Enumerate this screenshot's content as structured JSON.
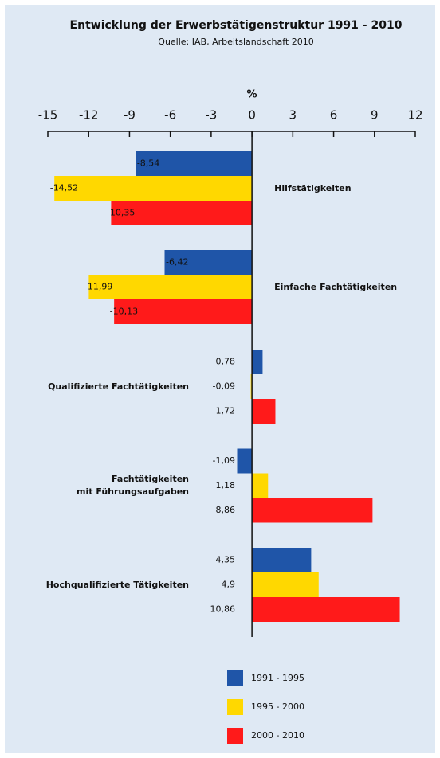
{
  "chart_data": {
    "type": "hbar",
    "title": "Entwicklung der Erwerbstätigenstruktur 1991 - 2010",
    "subtitle": "Quelle: IAB, Arbeitslandschaft 2010",
    "x_label": "%",
    "categories": [
      "Hilfstätigkeiten",
      "Einfache Fachtätigkeiten",
      "Qualifizierte Fachtätigkeiten",
      "Fachtätigkeiten\nmit Führungsaufgaben",
      "Hochqualifizierte Tätigkeiten"
    ],
    "series": [
      {
        "name": "1991 - 1995",
        "color": "#1f55a8",
        "values": [
          -8.54,
          -6.42,
          0.78,
          -1.09,
          4.35
        ],
        "value_labels": [
          "-8,54",
          "-6,42",
          "0,78",
          "-1,09",
          "4,35"
        ]
      },
      {
        "name": "1995 - 2000",
        "color": "#ffd800",
        "values": [
          -14.52,
          -11.99,
          -0.09,
          1.18,
          4.9
        ],
        "value_labels": [
          "-14,52",
          "-11,99",
          "-0,09",
          "1,18",
          "4,9"
        ]
      },
      {
        "name": "2000 - 2010",
        "color": "#ff1a1a",
        "values": [
          -10.35,
          -10.13,
          1.72,
          8.86,
          10.86
        ],
        "value_labels": [
          "-10,35",
          "-10,13",
          "1,72",
          "8,86",
          "10,86"
        ]
      }
    ],
    "xlim": [
      -15,
      12
    ],
    "xticks": [
      -15,
      -12,
      -9,
      -6,
      -3,
      0,
      3,
      6,
      9,
      12
    ]
  }
}
